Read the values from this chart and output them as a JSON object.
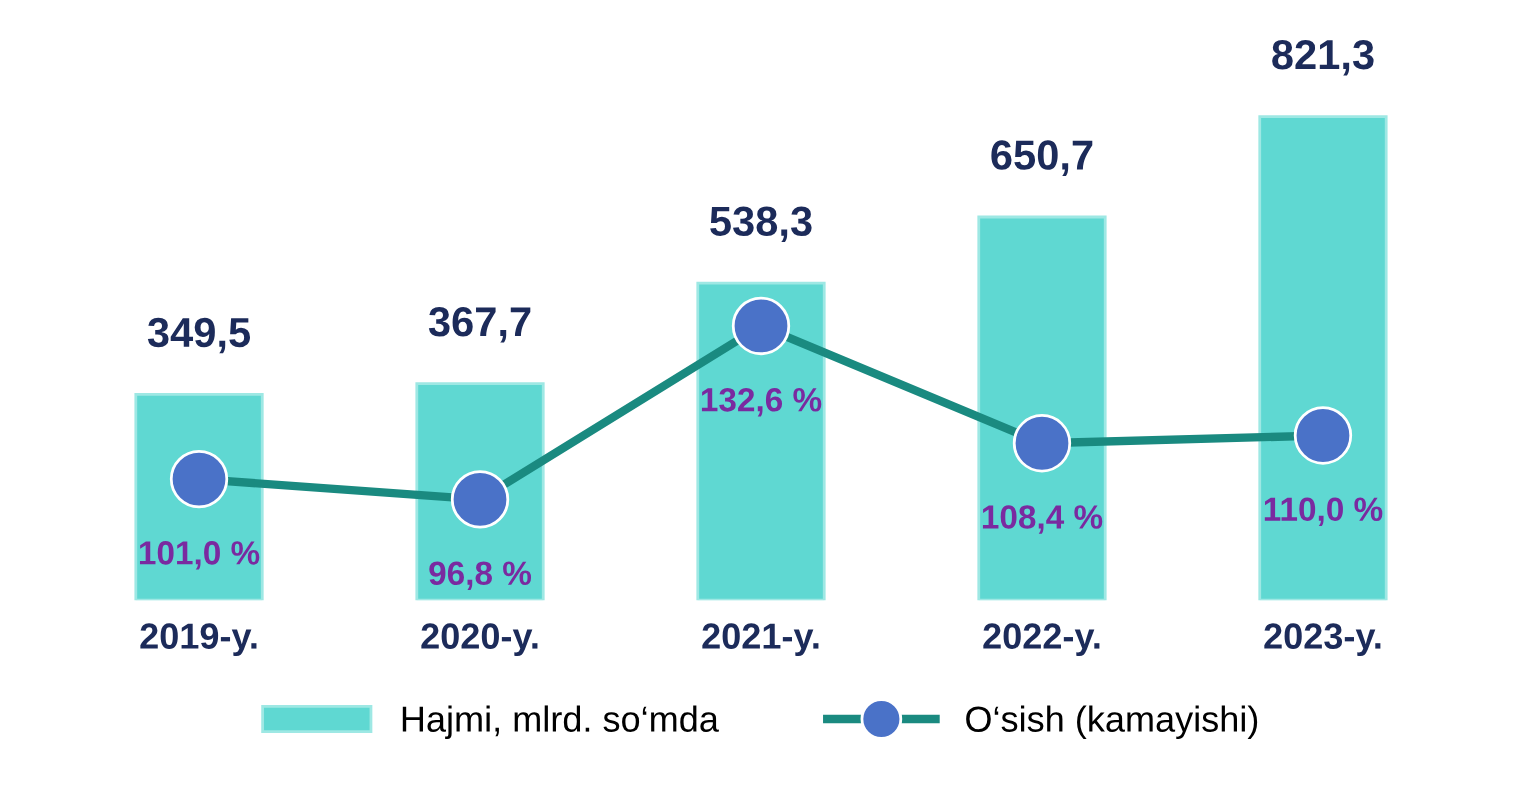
{
  "chart_data": {
    "type": "bar",
    "categories": [
      "2019-y.",
      "2020-y.",
      "2021-y.",
      "2022-y.",
      "2023-y."
    ],
    "series": [
      {
        "name": "Hajmi, mlrd. so‘mda",
        "color": "#5fd8d2",
        "values": [
          349.5,
          367.7,
          538.3,
          650.7,
          821.3
        ],
        "value_labels": [
          "349,5",
          "367,7",
          "538,3",
          "650,7",
          "821,3"
        ]
      },
      {
        "name": "O‘sish (kamayishi)",
        "type": "line",
        "axis": "y2",
        "color": "#1a8a80",
        "values": [
          101.0,
          96.8,
          132.6,
          108.4,
          110.0
        ],
        "value_labels": [
          "101,0 %",
          "96,8 %",
          "132,6 %",
          "108,4 %",
          "110,0 %"
        ]
      }
    ],
    "tick_labels": "x",
    "legend": "bottom",
    "marker": "circle"
  }
}
